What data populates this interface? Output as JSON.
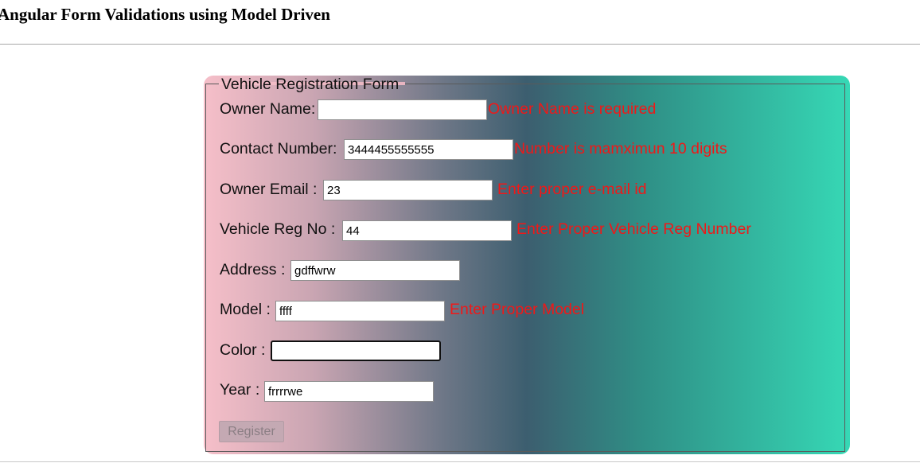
{
  "page": {
    "title": "Angular Form Validations using Model Driven"
  },
  "form": {
    "legend": "Vehicle Registration Form",
    "fields": {
      "owner_name": {
        "label": "Owner Name:",
        "value": "",
        "error": "Owner Name is required"
      },
      "contact_number": {
        "label": "Contact Number:",
        "value": "3444455555555",
        "error": "Number is mamximun 10 digits"
      },
      "owner_email": {
        "label": "Owner Email :",
        "value": "23",
        "error": "Enter proper e-mail id"
      },
      "vehicle_reg_no": {
        "label": "Vehicle Reg No :",
        "value": "44",
        "error": "Enter Proper Vehicle Reg Number"
      },
      "address": {
        "label": "Address :",
        "value": "gdffwrw"
      },
      "model": {
        "label": "Model :",
        "value": "ffff",
        "error": "Enter Proper Model"
      },
      "color": {
        "label": "Color :",
        "value": ""
      },
      "year": {
        "label": "Year :",
        "value": "frrrrwe"
      }
    },
    "register_label": "Register",
    "register_disabled": true
  },
  "colors": {
    "error_text": "#f01818",
    "gradient_start": "#f6bfc9",
    "gradient_mid": "#3c5e6f",
    "gradient_end": "#36d8b5"
  }
}
